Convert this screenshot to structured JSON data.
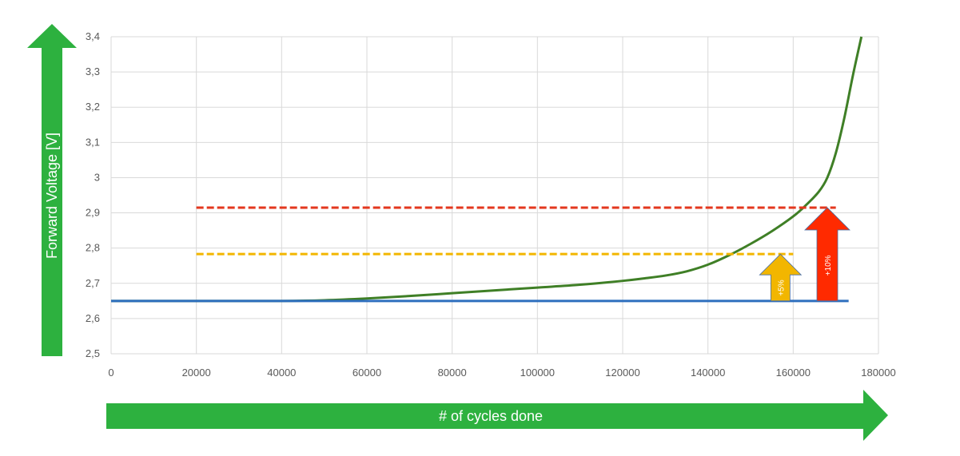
{
  "chart_data": {
    "type": "line",
    "title": "",
    "xlabel": "# of cycles done",
    "ylabel": "Forward Voltage [V]",
    "xlim": [
      0,
      180000
    ],
    "ylim": [
      2.5,
      3.4
    ],
    "x_ticks": [
      0,
      20000,
      40000,
      60000,
      80000,
      100000,
      120000,
      140000,
      160000,
      180000
    ],
    "x_tick_labels": [
      "0",
      "20000",
      "40000",
      "60000",
      "80000",
      "100000",
      "120000",
      "140000",
      "160000",
      "180000"
    ],
    "y_ticks": [
      2.5,
      2.6,
      2.7,
      2.8,
      2.9,
      3.0,
      3.1,
      3.2,
      3.3,
      3.4
    ],
    "y_tick_labels": [
      "2,5",
      "2,6",
      "2,7",
      "2,8",
      "2,9",
      "3",
      "3,1",
      "3,2",
      "3,3",
      "3,4"
    ],
    "grid": true,
    "series": [
      {
        "color": "#3f7f26",
        "style": "solid",
        "x": [
          0,
          20000,
          40000,
          50000,
          60000,
          70000,
          80000,
          90000,
          100000,
          110000,
          120000,
          125000,
          130000,
          135000,
          140000,
          145000,
          150000,
          155000,
          160000,
          163000,
          166000,
          168000,
          170000,
          172000,
          174000,
          176000
        ],
        "y": [
          2.65,
          2.65,
          2.65,
          2.652,
          2.657,
          2.664,
          2.672,
          2.68,
          2.688,
          2.696,
          2.707,
          2.714,
          2.722,
          2.734,
          2.753,
          2.78,
          2.812,
          2.848,
          2.89,
          2.922,
          2.96,
          3.0,
          3.07,
          3.17,
          3.29,
          3.4
        ]
      },
      {
        "color": "#2e6fbe",
        "style": "solid",
        "x": [
          0,
          173000
        ],
        "y": [
          2.65,
          2.65
        ]
      },
      {
        "color": "#f2b600",
        "style": "dashed",
        "x": [
          20000,
          160000
        ],
        "y": [
          2.783,
          2.783
        ]
      },
      {
        "color": "#e3371e",
        "style": "dashed",
        "x": [
          20000,
          170000
        ],
        "y": [
          2.915,
          2.915
        ]
      }
    ],
    "annotations": [
      {
        "label": "+5%",
        "x": 157000,
        "y_from": 2.65,
        "y_to": 2.783,
        "color": "#f2b600"
      },
      {
        "label": "+10%",
        "x": 168000,
        "y_from": 2.65,
        "y_to": 2.915,
        "color": "#ff2a00"
      }
    ],
    "axis_arrow_color": "#2db13f",
    "gridline_color": "#d9d9d9"
  }
}
